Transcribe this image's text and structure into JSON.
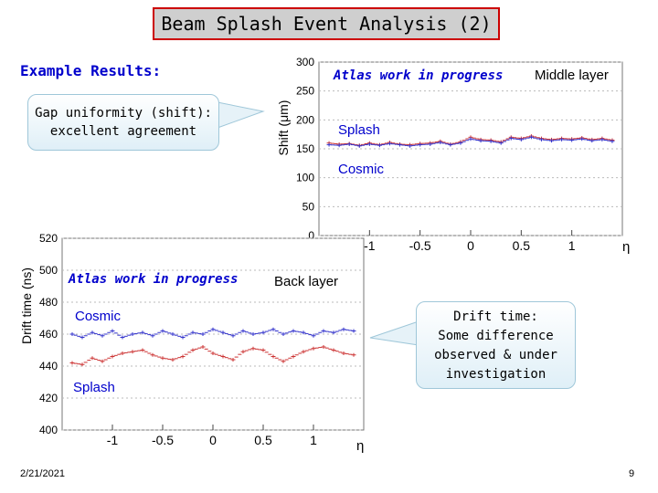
{
  "slide": {
    "title": "Beam Splash Event Analysis (2)",
    "example_label": "Example Results:",
    "callout_gap": [
      "Gap uniformity (shift):",
      "excellent agreement"
    ],
    "callout_drift": [
      "Drift time:",
      "Some difference",
      "observed & under",
      "investigation"
    ],
    "date": "2/21/2021",
    "page_number": "9"
  },
  "chart_data": [
    {
      "type": "scatter",
      "title": "",
      "ylabel": "Shift (μm)",
      "xlabel": "η",
      "xlim": [
        -1.5,
        1.5
      ],
      "ylim": [
        0,
        300
      ],
      "y_ticks": [
        "0",
        "50",
        "100",
        "150",
        "200",
        "250",
        "300"
      ],
      "x_ticks": [
        "-1",
        "-0.5",
        "0",
        "0.5",
        "1"
      ],
      "annotations": [
        "Atlas work in progress",
        "Middle layer",
        "Splash",
        "Cosmic"
      ],
      "colors": {
        "splash": "#cc3333",
        "cosmic": "#3333cc"
      },
      "series": [
        {
          "name": "Splash",
          "x": [
            -1.4,
            -1.3,
            -1.2,
            -1.1,
            -1.0,
            -0.9,
            -0.8,
            -0.7,
            -0.6,
            -0.5,
            -0.4,
            -0.3,
            -0.2,
            -0.1,
            0.0,
            0.1,
            0.2,
            0.3,
            0.4,
            0.5,
            0.6,
            0.7,
            0.8,
            0.9,
            1.0,
            1.1,
            1.2,
            1.3,
            1.4
          ],
          "values": [
            160,
            158,
            159,
            156,
            160,
            157,
            161,
            158,
            157,
            159,
            160,
            163,
            158,
            162,
            170,
            166,
            165,
            162,
            170,
            168,
            172,
            168,
            166,
            168,
            167,
            169,
            166,
            168,
            165
          ]
        },
        {
          "name": "Cosmic",
          "x": [
            -1.4,
            -1.3,
            -1.2,
            -1.1,
            -1.0,
            -0.9,
            -0.8,
            -0.7,
            -0.6,
            -0.5,
            -0.4,
            -0.3,
            -0.2,
            -0.1,
            0.0,
            0.1,
            0.2,
            0.3,
            0.4,
            0.5,
            0.6,
            0.7,
            0.8,
            0.9,
            1.0,
            1.1,
            1.2,
            1.3,
            1.4
          ],
          "values": [
            157,
            156,
            158,
            155,
            158,
            156,
            159,
            157,
            155,
            157,
            158,
            161,
            157,
            160,
            167,
            164,
            163,
            160,
            168,
            166,
            170,
            166,
            164,
            166,
            165,
            167,
            164,
            166,
            163
          ]
        }
      ]
    },
    {
      "type": "scatter",
      "title": "",
      "ylabel": "Drift time (ns)",
      "xlabel": "η",
      "xlim": [
        -1.5,
        1.5
      ],
      "ylim": [
        400,
        520
      ],
      "y_ticks": [
        "400",
        "420",
        "440",
        "460",
        "480",
        "500",
        "520"
      ],
      "x_ticks": [
        "-1",
        "-0.5",
        "0",
        "0.5",
        "1"
      ],
      "annotations": [
        "Atlas work in progress",
        "Back layer",
        "Cosmic",
        "Splash"
      ],
      "colors": {
        "splash": "#cc3333",
        "cosmic": "#3333cc"
      },
      "series": [
        {
          "name": "Cosmic",
          "x": [
            -1.4,
            -1.3,
            -1.2,
            -1.1,
            -1.0,
            -0.9,
            -0.8,
            -0.7,
            -0.6,
            -0.5,
            -0.4,
            -0.3,
            -0.2,
            -0.1,
            0.0,
            0.1,
            0.2,
            0.3,
            0.4,
            0.5,
            0.6,
            0.7,
            0.8,
            0.9,
            1.0,
            1.1,
            1.2,
            1.3,
            1.4
          ],
          "values": [
            460,
            458,
            461,
            459,
            462,
            458,
            460,
            461,
            459,
            462,
            460,
            458,
            461,
            460,
            463,
            461,
            459,
            462,
            460,
            461,
            463,
            460,
            462,
            461,
            459,
            462,
            461,
            463,
            462
          ]
        },
        {
          "name": "Splash",
          "x": [
            -1.4,
            -1.3,
            -1.2,
            -1.1,
            -1.0,
            -0.9,
            -0.8,
            -0.7,
            -0.6,
            -0.5,
            -0.4,
            -0.3,
            -0.2,
            -0.1,
            0.0,
            0.1,
            0.2,
            0.3,
            0.4,
            0.5,
            0.6,
            0.7,
            0.8,
            0.9,
            1.0,
            1.1,
            1.2,
            1.3,
            1.4
          ],
          "values": [
            442,
            441,
            445,
            443,
            446,
            448,
            449,
            450,
            447,
            445,
            444,
            446,
            450,
            452,
            448,
            446,
            444,
            449,
            451,
            450,
            446,
            443,
            446,
            449,
            451,
            452,
            450,
            448,
            447
          ]
        }
      ]
    }
  ]
}
